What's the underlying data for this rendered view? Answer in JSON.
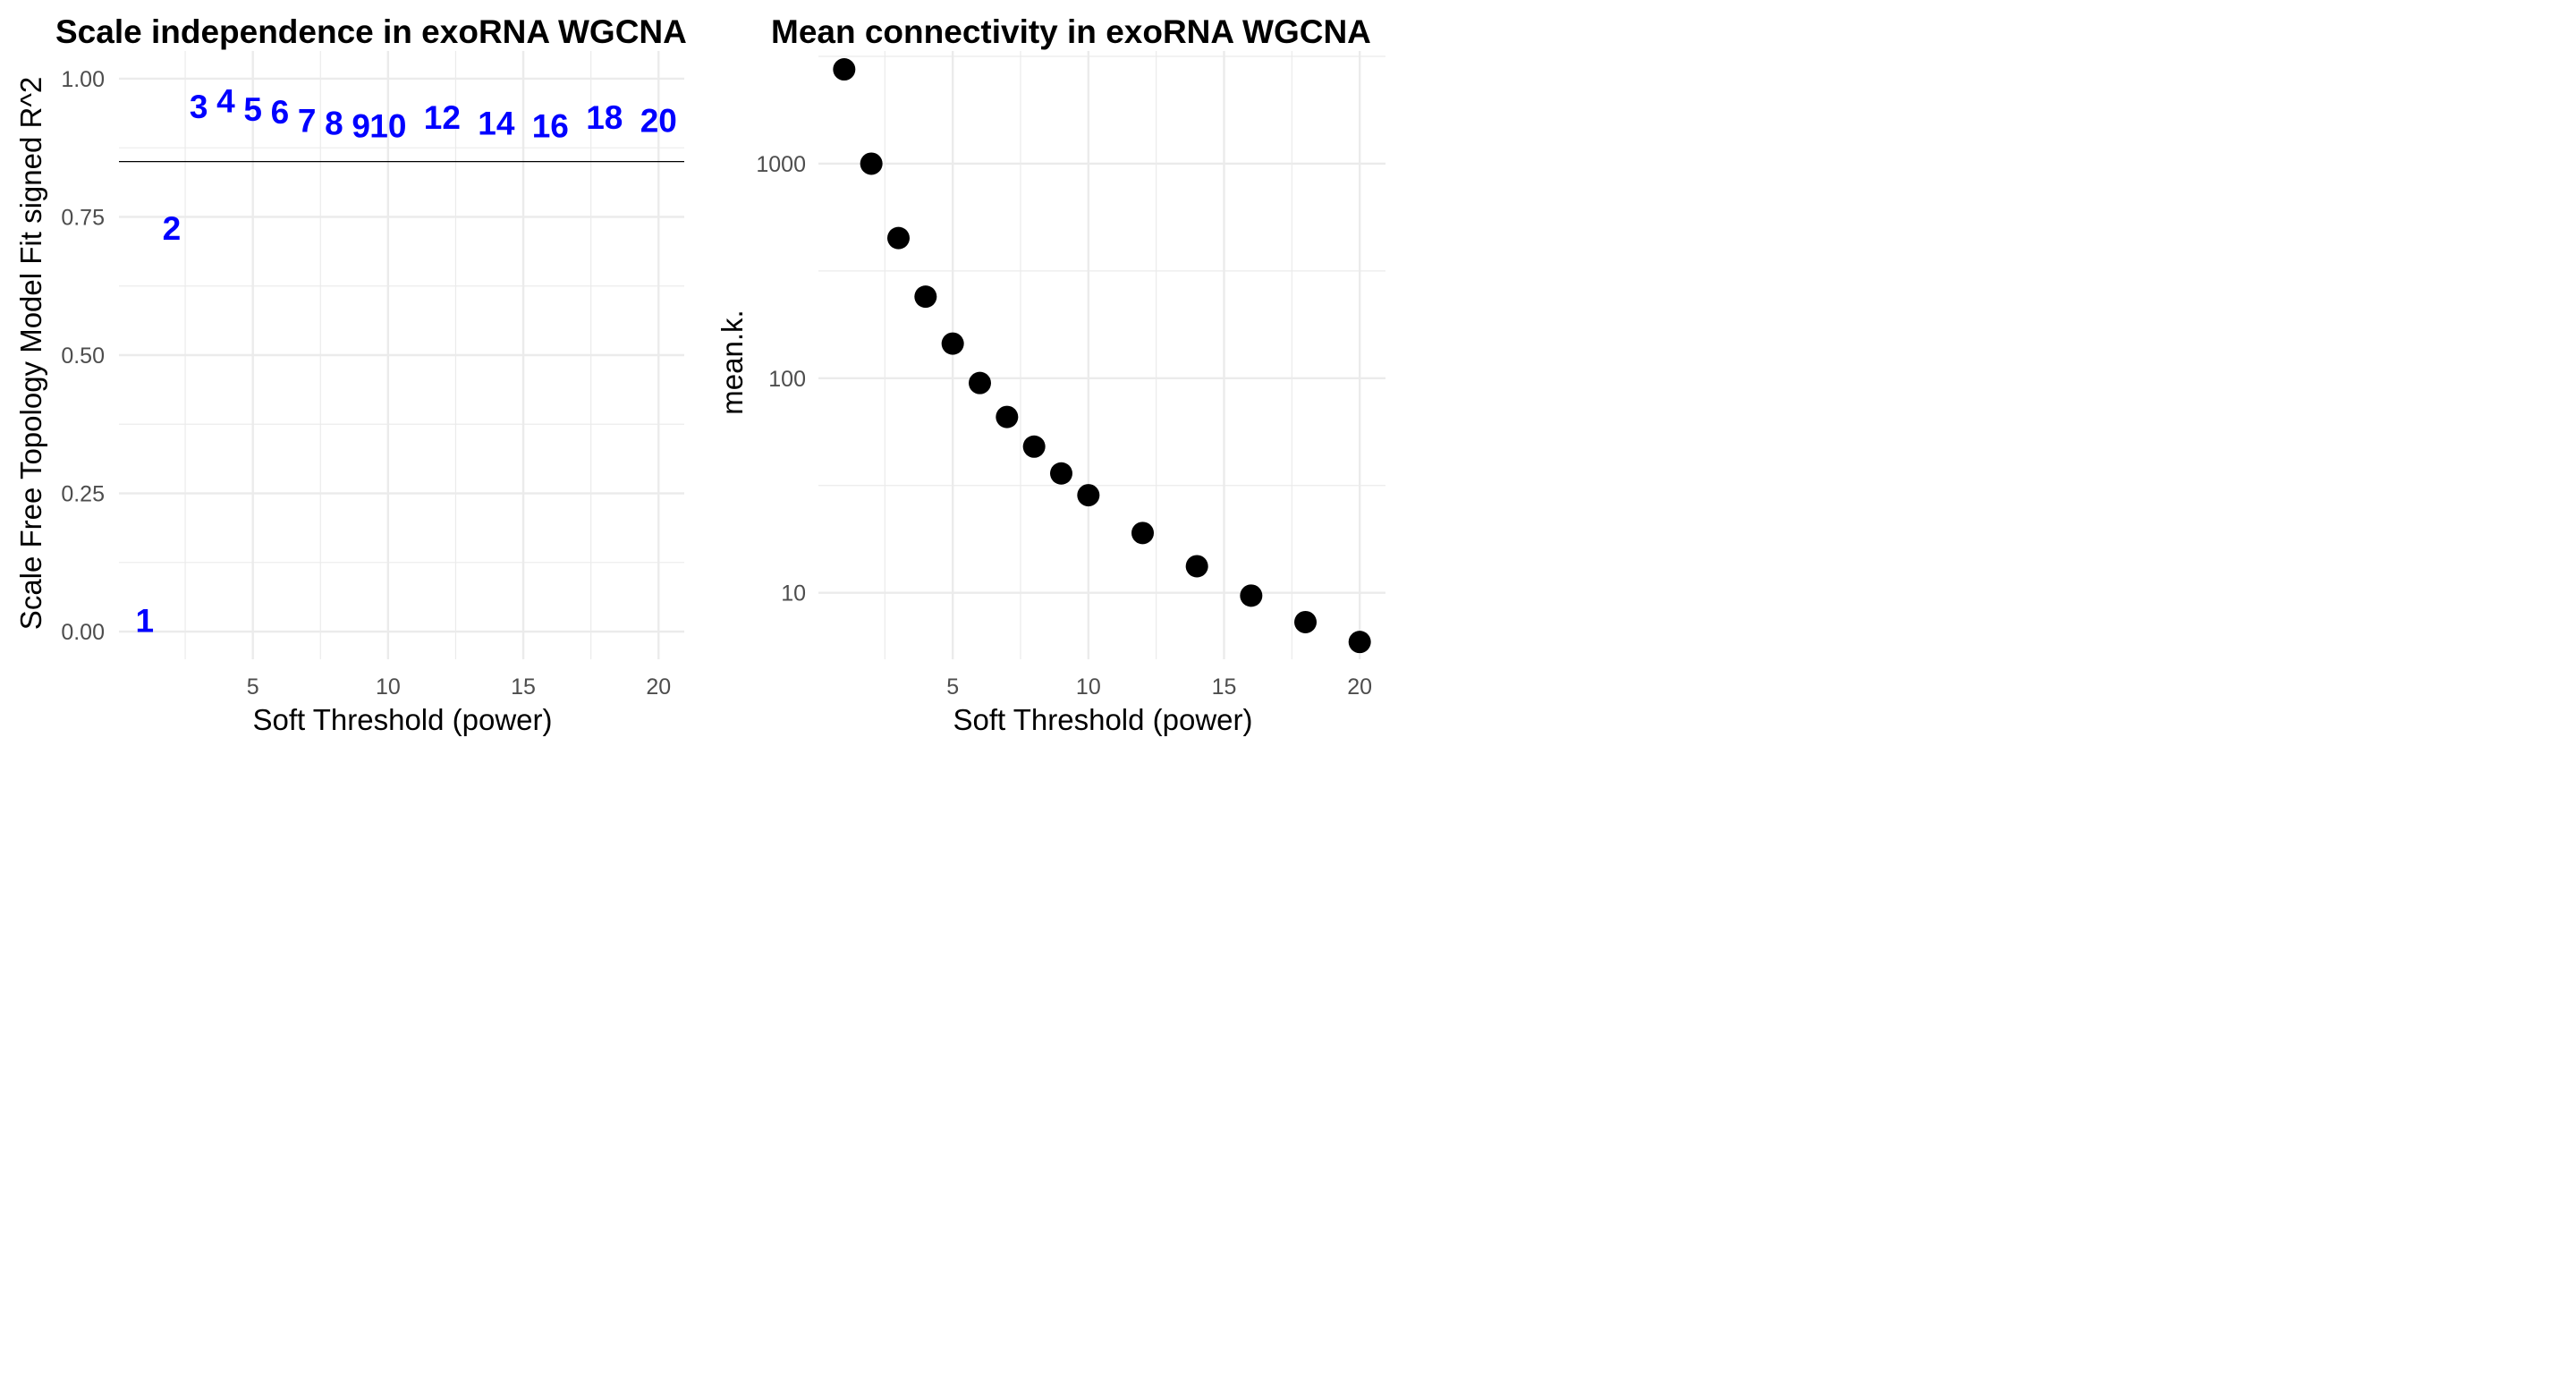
{
  "chart_data": [
    {
      "type": "scatter",
      "title": "Scale independence in exoRNA WGCNA",
      "xlabel": "Soft Threshold (power)",
      "ylabel": "Scale Free Topology Model Fit signed R^2",
      "xlim": [
        0.05,
        20.95
      ],
      "ylim": [
        -0.05,
        1.05
      ],
      "x_ticks": [
        5,
        10,
        15,
        20
      ],
      "x_tick_labels": [
        "5",
        "10",
        "15",
        "20"
      ],
      "y_ticks": [
        0,
        0.25,
        0.5,
        0.75,
        1
      ],
      "y_tick_labels": [
        "0.00",
        "0.25",
        "0.50",
        "0.75",
        "1.00"
      ],
      "grid": true,
      "marker": "text labels (power number)",
      "label_color": "#0000ff",
      "h_line": 0.85,
      "points": [
        {
          "x": 1,
          "y": 0.02,
          "label": "1"
        },
        {
          "x": 2,
          "y": 0.73,
          "label": "2"
        },
        {
          "x": 3,
          "y": 0.95,
          "label": "3"
        },
        {
          "x": 4,
          "y": 0.96,
          "label": "4"
        },
        {
          "x": 5,
          "y": 0.945,
          "label": "5"
        },
        {
          "x": 6,
          "y": 0.94,
          "label": "6"
        },
        {
          "x": 7,
          "y": 0.925,
          "label": "7"
        },
        {
          "x": 8,
          "y": 0.92,
          "label": "8"
        },
        {
          "x": 9,
          "y": 0.915,
          "label": "9"
        },
        {
          "x": 10,
          "y": 0.915,
          "label": "10"
        },
        {
          "x": 12,
          "y": 0.93,
          "label": "12"
        },
        {
          "x": 14,
          "y": 0.92,
          "label": "14"
        },
        {
          "x": 16,
          "y": 0.915,
          "label": "16"
        },
        {
          "x": 18,
          "y": 0.93,
          "label": "18"
        },
        {
          "x": 20,
          "y": 0.925,
          "label": "20"
        }
      ]
    },
    {
      "type": "scatter",
      "title": "Mean connectivity in exoRNA WGCNA",
      "xlabel": "Soft Threshold (power)",
      "ylabel": "mean.k.",
      "y_scale": "log10",
      "xlim": [
        0.05,
        20.95
      ],
      "ylim": [
        4.9,
        3350
      ],
      "x_ticks": [
        5,
        10,
        15,
        20
      ],
      "x_tick_labels": [
        "5",
        "10",
        "15",
        "20"
      ],
      "y_ticks": [
        10,
        100,
        1000
      ],
      "y_tick_labels": [
        "10",
        "100",
        "1000"
      ],
      "grid": true,
      "marker": "filled circle",
      "marker_color": "#000000",
      "points": [
        {
          "x": 1,
          "y": 2750
        },
        {
          "x": 2,
          "y": 1000
        },
        {
          "x": 3,
          "y": 450
        },
        {
          "x": 4,
          "y": 240
        },
        {
          "x": 5,
          "y": 145
        },
        {
          "x": 6,
          "y": 95
        },
        {
          "x": 7,
          "y": 66
        },
        {
          "x": 8,
          "y": 48
        },
        {
          "x": 9,
          "y": 36
        },
        {
          "x": 10,
          "y": 28.5
        },
        {
          "x": 12,
          "y": 19
        },
        {
          "x": 14,
          "y": 13.3
        },
        {
          "x": 16,
          "y": 9.7
        },
        {
          "x": 18,
          "y": 7.3
        },
        {
          "x": 20,
          "y": 5.9
        }
      ]
    }
  ]
}
